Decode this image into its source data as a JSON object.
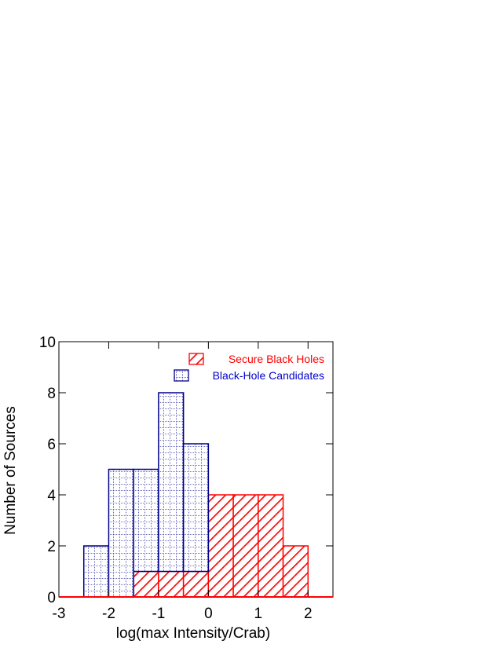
{
  "chart_data": {
    "type": "bar",
    "title": "",
    "xlabel": "log(max Intensity/Crab)",
    "ylabel": "Number of Sources",
    "xlim": [
      -3,
      2.5
    ],
    "ylim": [
      0,
      10
    ],
    "xticks": [
      -3,
      -2,
      -1,
      0,
      1,
      2
    ],
    "yticks": [
      0,
      2,
      4,
      6,
      8,
      10
    ],
    "bin_width": 0.5,
    "stacked": true,
    "legend_position": "top-right",
    "series": [
      {
        "name": "Secure Black Holes",
        "color": "#ff0000",
        "pattern": "diagonal-hatch",
        "bins": [
          {
            "x0": -1.5,
            "x1": -1.0,
            "count": 1
          },
          {
            "x0": -1.0,
            "x1": -0.5,
            "count": 1
          },
          {
            "x0": -0.5,
            "x1": 0.0,
            "count": 1
          },
          {
            "x0": 0.0,
            "x1": 0.5,
            "count": 4
          },
          {
            "x0": 0.5,
            "x1": 1.0,
            "count": 4
          },
          {
            "x0": 1.0,
            "x1": 1.5,
            "count": 4
          },
          {
            "x0": 1.5,
            "x1": 2.0,
            "count": 2
          }
        ]
      },
      {
        "name": "Black-Hole Candidates",
        "color": "#00008b",
        "pattern": "dotted-grid",
        "bins": [
          {
            "x0": -2.5,
            "x1": -2.0,
            "count": 2
          },
          {
            "x0": -2.0,
            "x1": -1.5,
            "count": 5
          },
          {
            "x0": -1.5,
            "x1": -1.0,
            "count": 4
          },
          {
            "x0": -1.0,
            "x1": -0.5,
            "count": 7
          },
          {
            "x0": -0.5,
            "x1": 0.0,
            "count": 5
          }
        ]
      }
    ]
  }
}
